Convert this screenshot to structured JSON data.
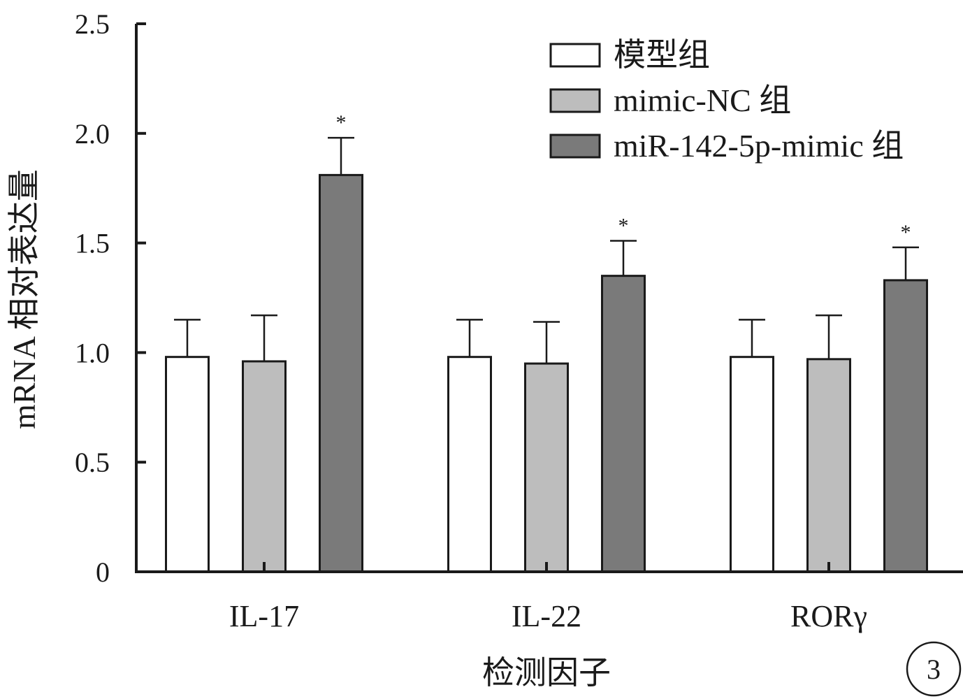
{
  "chart_data": {
    "type": "bar",
    "title": "",
    "xlabel": "检测因子",
    "ylabel": "mRNA 相对表达量",
    "ylim": [
      0,
      2.5
    ],
    "yticks": [
      0,
      0.5,
      1.0,
      1.5,
      2.0,
      2.5
    ],
    "ytick_labels": [
      "0",
      "0.5",
      "1.0",
      "1.5",
      "2.0",
      "2.5"
    ],
    "categories": [
      "IL-17",
      "IL-22",
      "RORγ"
    ],
    "series": [
      {
        "name": "模型组",
        "values": [
          0.98,
          0.98,
          0.98
        ],
        "errors": [
          0.17,
          0.17,
          0.17
        ],
        "color": "#ffffff",
        "significance": [
          "",
          "",
          ""
        ]
      },
      {
        "name": "mimic-NC 组",
        "values": [
          0.96,
          0.95,
          0.97
        ],
        "errors": [
          0.21,
          0.19,
          0.2
        ],
        "color": "#bdbdbd",
        "significance": [
          "",
          "",
          ""
        ]
      },
      {
        "name": "miR-142-5p-mimic 组",
        "values": [
          1.81,
          1.35,
          1.33
        ],
        "errors": [
          0.17,
          0.16,
          0.15
        ],
        "color": "#7a7a7a",
        "significance": [
          "*",
          "*",
          "*"
        ]
      }
    ],
    "legend_position": "top-right",
    "grid": false,
    "panel_label": "3",
    "bar_edge_color": "#1a1a1a",
    "axis_color": "#1a1a1a"
  }
}
